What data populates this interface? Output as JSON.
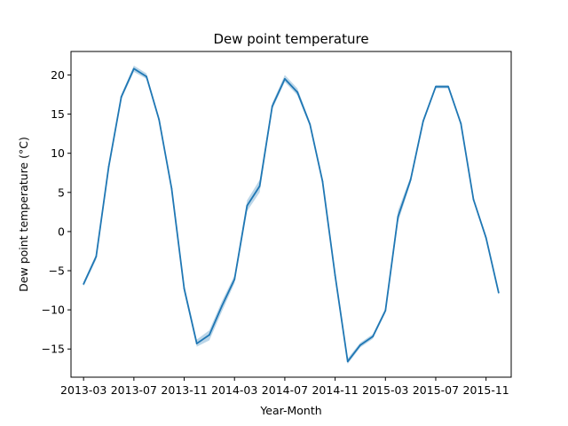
{
  "chart_data": {
    "type": "line",
    "title": "Dew point temperature",
    "xlabel": "Year-Month",
    "ylabel": "Dew point temperature (°C)",
    "x_tick_labels": [
      "2013-03",
      "2013-07",
      "2013-11",
      "2014-03",
      "2014-07",
      "2014-11",
      "2015-03",
      "2015-07",
      "2015-11"
    ],
    "y_ticks": [
      -15,
      -10,
      -5,
      0,
      5,
      10,
      15,
      20
    ],
    "y_tick_labels": [
      "−15",
      "−10",
      "−5",
      "0",
      "5",
      "10",
      "15",
      "20"
    ],
    "xlim": [
      "2013-02",
      "2016-01"
    ],
    "ylim": [
      -18.6,
      23.0
    ],
    "grid": false,
    "legend": "none",
    "series": [
      {
        "color": "#1f77b4",
        "band_color": "#a6c8e0",
        "x": [
          "2013-03",
          "2013-04",
          "2013-05",
          "2013-06",
          "2013-07",
          "2013-08",
          "2013-09",
          "2013-10",
          "2013-11",
          "2013-12",
          "2014-01",
          "2014-02",
          "2014-03",
          "2014-04",
          "2014-05",
          "2014-06",
          "2014-07",
          "2014-08",
          "2014-09",
          "2014-10",
          "2014-11",
          "2014-12",
          "2015-01",
          "2015-02",
          "2015-03",
          "2015-04",
          "2015-05",
          "2015-06",
          "2015-07",
          "2015-08",
          "2015-09",
          "2015-10",
          "2015-11",
          "2015-12"
        ],
        "values": [
          -6.7,
          -3.2,
          8.3,
          17.2,
          20.8,
          19.8,
          14.3,
          5.5,
          -7.3,
          -14.3,
          -13.2,
          -9.5,
          -6.1,
          3.3,
          5.8,
          16.0,
          19.5,
          17.8,
          13.7,
          6.4,
          -5.6,
          -16.6,
          -14.5,
          -13.4,
          -10.1,
          1.9,
          6.6,
          14.1,
          18.5,
          18.5,
          13.8,
          4.1,
          -0.8,
          -7.8
        ],
        "ci_lower": [
          -7.0,
          -3.6,
          8.0,
          16.9,
          20.4,
          19.5,
          14.1,
          5.2,
          -7.8,
          -14.7,
          -13.9,
          -10.2,
          -6.6,
          2.6,
          5.0,
          15.6,
          19.1,
          17.4,
          13.4,
          6.1,
          -6.0,
          -16.9,
          -14.8,
          -13.7,
          -10.4,
          1.2,
          6.2,
          13.8,
          18.3,
          18.3,
          13.6,
          3.9,
          -1.1,
          -8.1
        ],
        "ci_upper": [
          -6.4,
          -2.9,
          8.6,
          17.5,
          21.2,
          20.2,
          14.6,
          5.8,
          -6.8,
          -13.8,
          -12.6,
          -8.9,
          -5.6,
          4.0,
          6.6,
          16.4,
          20.0,
          18.3,
          14.0,
          6.8,
          -5.2,
          -16.2,
          -14.2,
          -13.1,
          -9.8,
          2.7,
          7.0,
          14.4,
          18.7,
          18.7,
          14.0,
          4.4,
          -0.5,
          -7.5
        ]
      }
    ]
  }
}
